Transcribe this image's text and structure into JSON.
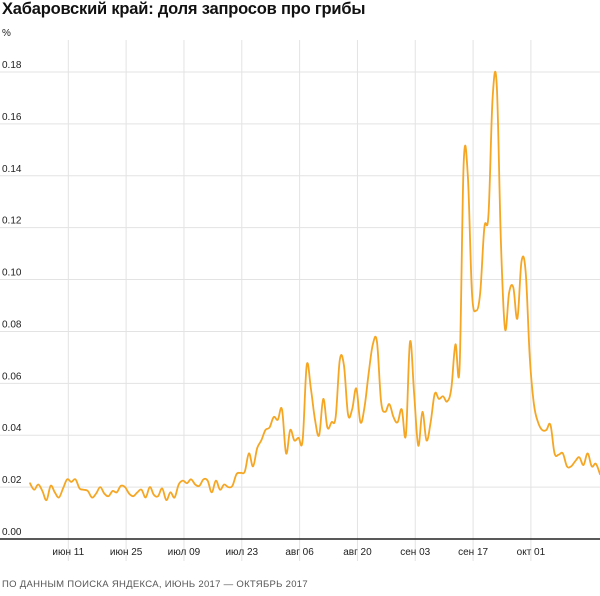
{
  "title": "Хабаровский край: доля запросов про грибы",
  "source": "ПО ДАННЫМ ПОИСКА ЯНДЕКСА, ИЮНЬ 2017 — ОКТЯБРЬ 2017",
  "colors": {
    "line": "#f5a623",
    "grid": "#e3e3e3",
    "axis": "#222222"
  },
  "chart_data": {
    "type": "line",
    "title": "Хабаровский край: доля запросов про грибы",
    "ylabel": "%",
    "ylim": [
      0,
      0.19
    ],
    "y_ticks": [
      0.0,
      0.02,
      0.04,
      0.06,
      0.08,
      0.1,
      0.12,
      0.14,
      0.16,
      0.18
    ],
    "y_tick_labels": [
      "0.00",
      "0.02",
      "0.04",
      "0.06",
      "0.08",
      "0.10",
      "0.12",
      "0.14",
      "0.16",
      "0.18"
    ],
    "x_tick_labels": [
      "июн 11",
      "июн 25",
      "июл 09",
      "июл 23",
      "авг 06",
      "авг 20",
      "сен 03",
      "сен 17",
      "окт 01"
    ],
    "x_start": "2017-06-01",
    "x_end": "2017-10-10",
    "grid": true,
    "series": [
      {
        "points": [
          [
            "2017-06-01",
            0.0215
          ],
          [
            "2017-06-02",
            0.019
          ],
          [
            "2017-06-03",
            0.021
          ],
          [
            "2017-06-04",
            0.0185
          ],
          [
            "2017-06-05",
            0.015
          ],
          [
            "2017-06-06",
            0.0205
          ],
          [
            "2017-06-07",
            0.018
          ],
          [
            "2017-06-08",
            0.016
          ],
          [
            "2017-06-09",
            0.0195
          ],
          [
            "2017-06-10",
            0.023
          ],
          [
            "2017-06-11",
            0.022
          ],
          [
            "2017-06-12",
            0.023
          ],
          [
            "2017-06-13",
            0.0195
          ],
          [
            "2017-06-14",
            0.019
          ],
          [
            "2017-06-15",
            0.0185
          ],
          [
            "2017-06-16",
            0.016
          ],
          [
            "2017-06-17",
            0.0175
          ],
          [
            "2017-06-18",
            0.02
          ],
          [
            "2017-06-19",
            0.0175
          ],
          [
            "2017-06-20",
            0.0165
          ],
          [
            "2017-06-21",
            0.0185
          ],
          [
            "2017-06-22",
            0.018
          ],
          [
            "2017-06-23",
            0.0205
          ],
          [
            "2017-06-24",
            0.02
          ],
          [
            "2017-06-25",
            0.0175
          ],
          [
            "2017-06-26",
            0.0165
          ],
          [
            "2017-06-27",
            0.018
          ],
          [
            "2017-06-28",
            0.019
          ],
          [
            "2017-06-29",
            0.016
          ],
          [
            "2017-06-30",
            0.02
          ],
          [
            "2017-07-01",
            0.017
          ],
          [
            "2017-07-02",
            0.0165
          ],
          [
            "2017-07-03",
            0.0195
          ],
          [
            "2017-07-04",
            0.015
          ],
          [
            "2017-07-05",
            0.018
          ],
          [
            "2017-07-06",
            0.016
          ],
          [
            "2017-07-07",
            0.021
          ],
          [
            "2017-07-08",
            0.0225
          ],
          [
            "2017-07-09",
            0.0215
          ],
          [
            "2017-07-10",
            0.023
          ],
          [
            "2017-07-11",
            0.021
          ],
          [
            "2017-07-12",
            0.0205
          ],
          [
            "2017-07-13",
            0.023
          ],
          [
            "2017-07-14",
            0.0225
          ],
          [
            "2017-07-15",
            0.018
          ],
          [
            "2017-07-16",
            0.0225
          ],
          [
            "2017-07-17",
            0.019
          ],
          [
            "2017-07-18",
            0.021
          ],
          [
            "2017-07-19",
            0.02
          ],
          [
            "2017-07-20",
            0.0205
          ],
          [
            "2017-07-21",
            0.025
          ],
          [
            "2017-07-22",
            0.0255
          ],
          [
            "2017-07-23",
            0.026
          ],
          [
            "2017-07-24",
            0.033
          ],
          [
            "2017-07-25",
            0.028
          ],
          [
            "2017-07-26",
            0.035
          ],
          [
            "2017-07-27",
            0.038
          ],
          [
            "2017-07-28",
            0.042
          ],
          [
            "2017-07-29",
            0.043
          ],
          [
            "2017-07-30",
            0.047
          ],
          [
            "2017-07-31",
            0.046
          ],
          [
            "2017-08-01",
            0.05
          ],
          [
            "2017-08-02",
            0.033
          ],
          [
            "2017-08-03",
            0.042
          ],
          [
            "2017-08-04",
            0.038
          ],
          [
            "2017-08-05",
            0.039
          ],
          [
            "2017-08-06",
            0.038
          ],
          [
            "2017-08-07",
            0.067
          ],
          [
            "2017-08-08",
            0.058
          ],
          [
            "2017-08-09",
            0.046
          ],
          [
            "2017-08-10",
            0.04
          ],
          [
            "2017-08-11",
            0.054
          ],
          [
            "2017-08-12",
            0.043
          ],
          [
            "2017-08-13",
            0.045
          ],
          [
            "2017-08-14",
            0.047
          ],
          [
            "2017-08-15",
            0.069
          ],
          [
            "2017-08-16",
            0.067
          ],
          [
            "2017-08-17",
            0.048
          ],
          [
            "2017-08-18",
            0.05
          ],
          [
            "2017-08-19",
            0.058
          ],
          [
            "2017-08-20",
            0.045
          ],
          [
            "2017-08-21",
            0.051
          ],
          [
            "2017-08-22",
            0.064
          ],
          [
            "2017-08-23",
            0.075
          ],
          [
            "2017-08-24",
            0.076
          ],
          [
            "2017-08-25",
            0.053
          ],
          [
            "2017-08-26",
            0.049
          ],
          [
            "2017-08-27",
            0.052
          ],
          [
            "2017-08-28",
            0.047
          ],
          [
            "2017-08-29",
            0.045
          ],
          [
            "2017-08-30",
            0.05
          ],
          [
            "2017-08-31",
            0.04
          ],
          [
            "2017-09-01",
            0.076
          ],
          [
            "2017-09-02",
            0.056
          ],
          [
            "2017-09-03",
            0.036
          ],
          [
            "2017-09-04",
            0.049
          ],
          [
            "2017-09-05",
            0.038
          ],
          [
            "2017-09-06",
            0.045
          ],
          [
            "2017-09-07",
            0.056
          ],
          [
            "2017-09-08",
            0.054
          ],
          [
            "2017-09-09",
            0.055
          ],
          [
            "2017-09-10",
            0.053
          ],
          [
            "2017-09-11",
            0.058
          ],
          [
            "2017-09-12",
            0.075
          ],
          [
            "2017-09-13",
            0.066
          ],
          [
            "2017-09-14",
            0.145
          ],
          [
            "2017-09-15",
            0.14
          ],
          [
            "2017-09-16",
            0.095
          ],
          [
            "2017-09-17",
            0.088
          ],
          [
            "2017-09-18",
            0.095
          ],
          [
            "2017-09-19",
            0.12
          ],
          [
            "2017-09-20",
            0.125
          ],
          [
            "2017-09-21",
            0.17
          ],
          [
            "2017-09-22",
            0.175
          ],
          [
            "2017-09-23",
            0.115
          ],
          [
            "2017-09-24",
            0.081
          ],
          [
            "2017-09-25",
            0.095
          ],
          [
            "2017-09-26",
            0.097
          ],
          [
            "2017-09-27",
            0.085
          ],
          [
            "2017-09-28",
            0.107
          ],
          [
            "2017-09-29",
            0.103
          ],
          [
            "2017-09-30",
            0.07
          ],
          [
            "2017-10-01",
            0.052
          ],
          [
            "2017-10-02",
            0.045
          ],
          [
            "2017-10-03",
            0.042
          ],
          [
            "2017-10-04",
            0.042
          ],
          [
            "2017-10-05",
            0.044
          ],
          [
            "2017-10-06",
            0.033
          ],
          [
            "2017-10-07",
            0.0325
          ],
          [
            "2017-10-08",
            0.033
          ],
          [
            "2017-10-09",
            0.028
          ],
          [
            "2017-10-10",
            0.028
          ],
          [
            "2017-10-11",
            0.03
          ],
          [
            "2017-10-12",
            0.0315
          ],
          [
            "2017-10-13",
            0.0285
          ],
          [
            "2017-10-14",
            0.033
          ],
          [
            "2017-10-15",
            0.028
          ],
          [
            "2017-10-16",
            0.029
          ],
          [
            "2017-10-17",
            0.025
          ]
        ]
      }
    ]
  }
}
